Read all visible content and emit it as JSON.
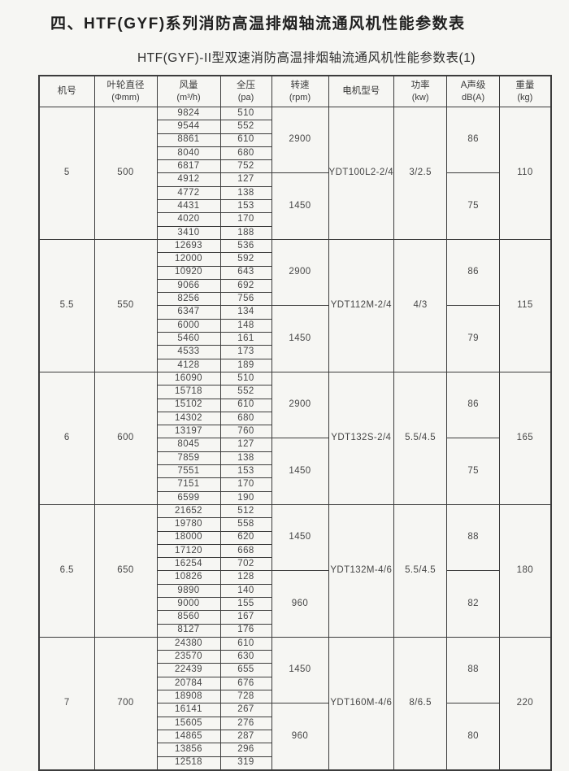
{
  "page": {
    "title": "四、HTF(GYF)系列消防高温排烟轴流通风机性能参数表",
    "subtitle": "HTF(GYF)-II型双速消防高温排烟轴流通风机性能参数表(1)"
  },
  "table": {
    "headers": [
      {
        "line1": "机号",
        "line2": ""
      },
      {
        "line1": "叶轮直径",
        "line2": "(Φmm)"
      },
      {
        "line1": "风量",
        "line2": "(m³/h)"
      },
      {
        "line1": "全压",
        "line2": "(pa)"
      },
      {
        "line1": "转速",
        "line2": "(rpm)"
      },
      {
        "line1": "电机型号",
        "line2": ""
      },
      {
        "line1": "功率",
        "line2": "(kw)"
      },
      {
        "line1": "A声级",
        "line2": "dB(A)"
      },
      {
        "line1": "重量",
        "line2": "(kg)"
      }
    ],
    "groups": [
      {
        "model_no": "5",
        "impeller_diameter": "500",
        "rows": [
          [
            "9824",
            "510"
          ],
          [
            "9544",
            "552"
          ],
          [
            "8861",
            "610"
          ],
          [
            "8040",
            "680"
          ],
          [
            "6817",
            "752"
          ],
          [
            "4912",
            "127"
          ],
          [
            "4772",
            "138"
          ],
          [
            "4431",
            "153"
          ],
          [
            "4020",
            "170"
          ],
          [
            "3410",
            "188"
          ]
        ],
        "speeds": [
          "2900",
          "1450"
        ],
        "motor": "YDT100L2-2/4",
        "power": "3/2.5",
        "noise": [
          "86",
          "75"
        ],
        "weight": "110"
      },
      {
        "model_no": "5.5",
        "impeller_diameter": "550",
        "rows": [
          [
            "12693",
            "536"
          ],
          [
            "12000",
            "592"
          ],
          [
            "10920",
            "643"
          ],
          [
            "9066",
            "692"
          ],
          [
            "8256",
            "756"
          ],
          [
            "6347",
            "134"
          ],
          [
            "6000",
            "148"
          ],
          [
            "5460",
            "161"
          ],
          [
            "4533",
            "173"
          ],
          [
            "4128",
            "189"
          ]
        ],
        "speeds": [
          "2900",
          "1450"
        ],
        "motor": "YDT112M-2/4",
        "power": "4/3",
        "noise": [
          "86",
          "79"
        ],
        "weight": "115"
      },
      {
        "model_no": "6",
        "impeller_diameter": "600",
        "rows": [
          [
            "16090",
            "510"
          ],
          [
            "15718",
            "552"
          ],
          [
            "15102",
            "610"
          ],
          [
            "14302",
            "680"
          ],
          [
            "13197",
            "760"
          ],
          [
            "8045",
            "127"
          ],
          [
            "7859",
            "138"
          ],
          [
            "7551",
            "153"
          ],
          [
            "7151",
            "170"
          ],
          [
            "6599",
            "190"
          ]
        ],
        "speeds": [
          "2900",
          "1450"
        ],
        "motor": "YDT132S-2/4",
        "power": "5.5/4.5",
        "noise": [
          "86",
          "75"
        ],
        "weight": "165"
      },
      {
        "model_no": "6.5",
        "impeller_diameter": "650",
        "rows": [
          [
            "21652",
            "512"
          ],
          [
            "19780",
            "558"
          ],
          [
            "18000",
            "620"
          ],
          [
            "17120",
            "668"
          ],
          [
            "16254",
            "702"
          ],
          [
            "10826",
            "128"
          ],
          [
            "9890",
            "140"
          ],
          [
            "9000",
            "155"
          ],
          [
            "8560",
            "167"
          ],
          [
            "8127",
            "176"
          ]
        ],
        "speeds": [
          "1450",
          "960"
        ],
        "motor": "YDT132M-4/6",
        "power": "5.5/4.5",
        "noise": [
          "88",
          "82"
        ],
        "weight": "180"
      },
      {
        "model_no": "7",
        "impeller_diameter": "700",
        "rows": [
          [
            "24380",
            "610"
          ],
          [
            "23570",
            "630"
          ],
          [
            "22439",
            "655"
          ],
          [
            "20784",
            "676"
          ],
          [
            "18908",
            "728"
          ],
          [
            "16141",
            "267"
          ],
          [
            "15605",
            "276"
          ],
          [
            "14865",
            "287"
          ],
          [
            "13856",
            "296"
          ],
          [
            "12518",
            "319"
          ]
        ],
        "speeds": [
          "1450",
          "960"
        ],
        "motor": "YDT160M-4/6",
        "power": "8/6.5",
        "noise": [
          "88",
          "80"
        ],
        "weight": "220"
      }
    ]
  }
}
